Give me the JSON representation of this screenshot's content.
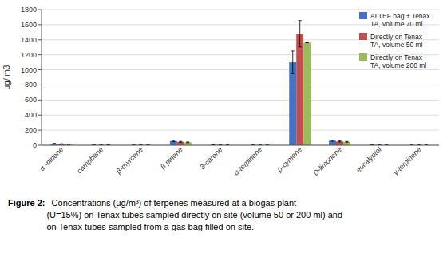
{
  "chart_data": {
    "type": "bar",
    "categories": [
      "α -pinene",
      "camphene",
      "β-myrcene",
      "β pinene",
      "3-carene",
      "α-terpinene",
      "p-cymene",
      "D-limonene",
      "eucalyptol",
      "γ-terpinene"
    ],
    "series": [
      {
        "name": "ALTEF bag + Tenax\nTA, volume 70 ml",
        "color": "#4472C4",
        "values": [
          20,
          3,
          2,
          55,
          4,
          2,
          1100,
          60,
          3,
          2
        ],
        "errors": [
          5,
          0,
          0,
          8,
          0,
          0,
          150,
          8,
          0,
          0
        ]
      },
      {
        "name": "Directly on Tenax\nTA, volume 50 ml",
        "color": "#C0504D",
        "values": [
          15,
          3,
          2,
          45,
          4,
          2,
          1480,
          50,
          3,
          2
        ],
        "errors": [
          4,
          0,
          0,
          6,
          0,
          0,
          175,
          7,
          0,
          0
        ]
      },
      {
        "name": "Directly on Tenax\nTA, volume 200 ml",
        "color": "#9BBB59",
        "values": [
          10,
          3,
          2,
          38,
          4,
          2,
          1360,
          45,
          3,
          2
        ],
        "errors": [
          0,
          0,
          0,
          5,
          0,
          0,
          0,
          5,
          0,
          0
        ]
      }
    ],
    "y_label": "μg/ m3",
    "ylim": [
      0,
      1800
    ],
    "yticks": [
      0,
      200,
      400,
      600,
      800,
      1000,
      1200,
      1400,
      1600,
      1800
    ],
    "grid": true,
    "legend": "upper right",
    "annotations": [
      "Figure 2:",
      "  Concentrations (μg/m³) of terpenes measured at a biogas plant\n(U=15%) on Tenax tubes sampled directly on site (volume 50 or 200 ml) and\non Tenax tubes sampled from a gas bag filled on site."
    ]
  }
}
